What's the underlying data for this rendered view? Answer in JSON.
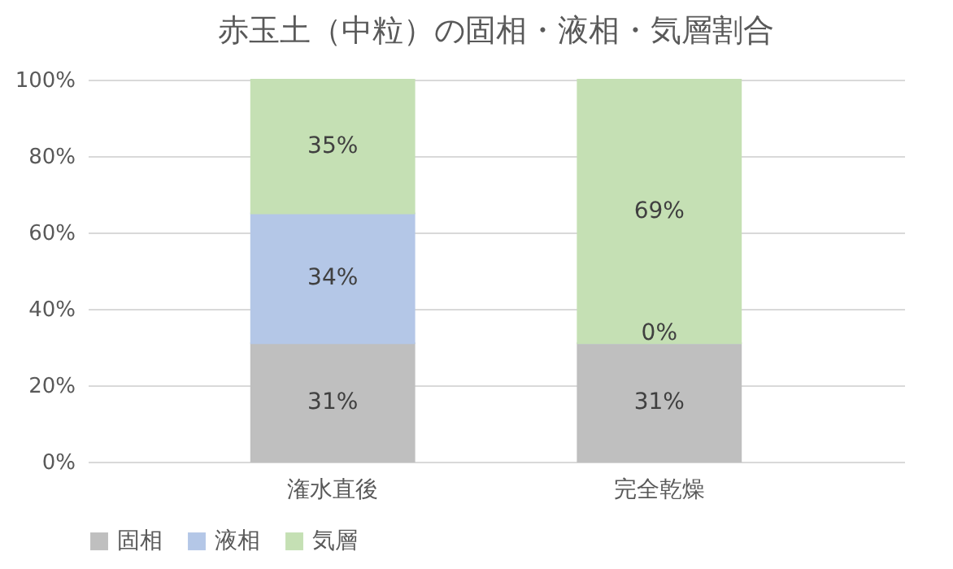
{
  "chart_data": {
    "type": "bar",
    "title": "赤玉土（中粒）の固相・液相・気層割合",
    "categories": [
      "潅水直後",
      "完全乾燥"
    ],
    "series": [
      {
        "name": "固相",
        "color": "#bfbfbf",
        "values": [
          31,
          31
        ],
        "value_labels": [
          "31%",
          "31%"
        ]
      },
      {
        "name": "液相",
        "color": "#b4c7e7",
        "values": [
          34,
          0
        ],
        "value_labels": [
          "34%",
          "0%"
        ]
      },
      {
        "name": "気層",
        "color": "#c5e0b4",
        "values": [
          35,
          69
        ],
        "value_labels": [
          "35%",
          "69%"
        ]
      }
    ],
    "stacked": true,
    "ylim": [
      0,
      100
    ],
    "yticks": [
      {
        "value": 0,
        "label": "0%"
      },
      {
        "value": 20,
        "label": "20%"
      },
      {
        "value": 40,
        "label": "40%"
      },
      {
        "value": 60,
        "label": "60%"
      },
      {
        "value": 80,
        "label": "80%"
      },
      {
        "value": 100,
        "label": "100%"
      }
    ],
    "grid": "y",
    "legend": "bottom"
  }
}
